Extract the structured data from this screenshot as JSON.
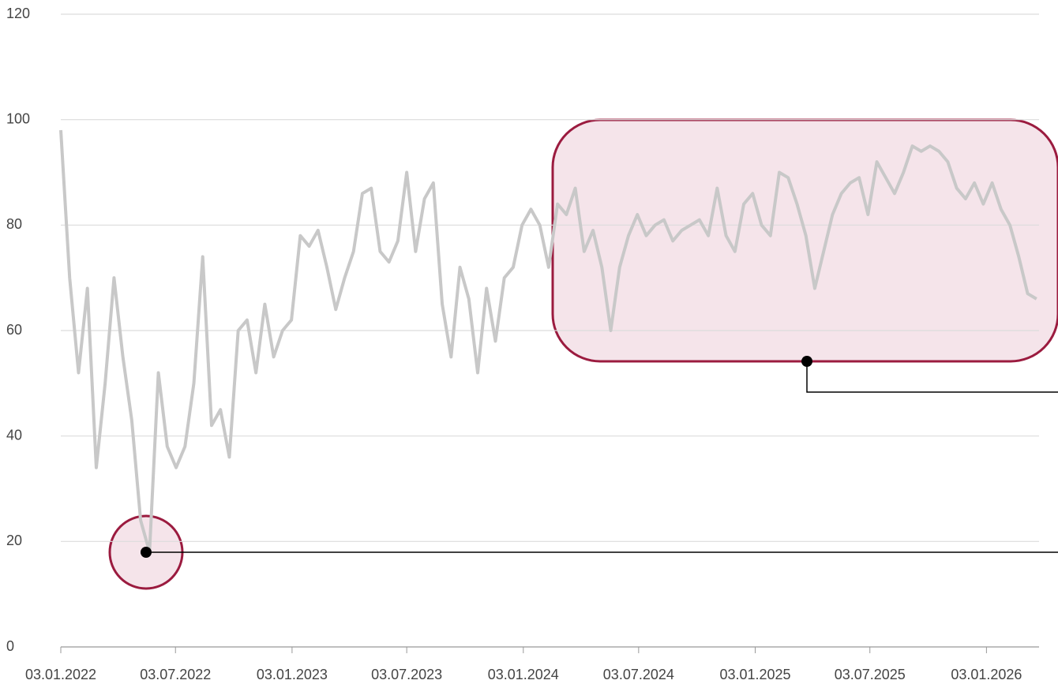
{
  "chart_data": {
    "type": "line",
    "x": [
      "2022-01-03",
      "2022-01-17",
      "2022-01-31",
      "2022-02-14",
      "2022-02-28",
      "2022-03-14",
      "2022-03-28",
      "2022-04-11",
      "2022-04-25",
      "2022-05-09",
      "2022-05-23",
      "2022-06-06",
      "2022-06-20",
      "2022-07-04",
      "2022-07-18",
      "2022-08-01",
      "2022-08-15",
      "2022-08-29",
      "2022-09-12",
      "2022-09-26",
      "2022-10-10",
      "2022-10-24",
      "2022-11-07",
      "2022-11-21",
      "2022-12-05",
      "2022-12-19",
      "2023-01-02",
      "2023-01-16",
      "2023-01-30",
      "2023-02-13",
      "2023-02-27",
      "2023-03-13",
      "2023-03-27",
      "2023-04-10",
      "2023-04-24",
      "2023-05-08",
      "2023-05-22",
      "2023-06-05",
      "2023-06-19",
      "2023-07-03",
      "2023-07-17",
      "2023-07-31",
      "2023-08-14",
      "2023-08-28",
      "2023-09-11",
      "2023-09-25",
      "2023-10-09",
      "2023-10-23",
      "2023-11-06",
      "2023-11-20",
      "2023-12-04",
      "2023-12-18",
      "2024-01-01",
      "2024-01-15",
      "2024-01-29",
      "2024-02-12",
      "2024-02-26",
      "2024-03-11",
      "2024-03-25",
      "2024-04-08",
      "2024-04-22",
      "2024-05-06",
      "2024-05-20",
      "2024-06-03",
      "2024-06-17",
      "2024-07-01",
      "2024-07-15",
      "2024-07-29",
      "2024-08-12",
      "2024-08-26",
      "2024-09-09",
      "2024-09-23",
      "2024-10-07",
      "2024-10-21",
      "2024-11-04",
      "2024-11-18",
      "2024-12-02",
      "2024-12-16",
      "2024-12-30",
      "2025-01-13",
      "2025-01-27",
      "2025-02-10",
      "2025-02-24",
      "2025-03-10",
      "2025-03-24",
      "2025-04-07",
      "2025-04-21",
      "2025-05-05",
      "2025-05-19",
      "2025-06-02",
      "2025-06-16",
      "2025-06-30",
      "2025-07-14",
      "2025-07-28",
      "2025-08-11",
      "2025-08-25",
      "2025-09-08",
      "2025-09-22",
      "2025-10-06",
      "2025-10-20",
      "2025-11-03",
      "2025-11-17",
      "2025-12-01",
      "2025-12-15",
      "2025-12-29",
      "2026-01-12",
      "2026-01-26",
      "2026-02-09",
      "2026-02-23",
      "2026-03-09",
      "2026-03-23"
    ],
    "series": [
      {
        "color": "#c8c8c8",
        "values": [
          98,
          70,
          52,
          68,
          34,
          50,
          70,
          55,
          43,
          24,
          18,
          52,
          38,
          34,
          38,
          50,
          74,
          42,
          45,
          36,
          60,
          62,
          52,
          65,
          55,
          60,
          62,
          78,
          76,
          79,
          72,
          64,
          70,
          75,
          86,
          87,
          75,
          73,
          77,
          90,
          75,
          85,
          88,
          65,
          55,
          72,
          66,
          52,
          68,
          58,
          70,
          72,
          80,
          83,
          80,
          72,
          84,
          82,
          87,
          75,
          79,
          72,
          60,
          72,
          78,
          82,
          78,
          80,
          81,
          77,
          79,
          80,
          81,
          78,
          87,
          78,
          75,
          84,
          86,
          80,
          78,
          90,
          89,
          84,
          78,
          68,
          75,
          82,
          86,
          88,
          89,
          82,
          92,
          89,
          86,
          90,
          95,
          94,
          95,
          94,
          92,
          87,
          85,
          88,
          84,
          88,
          83,
          80,
          74,
          67,
          66
        ]
      }
    ],
    "xlim": [
      "2022-01-03",
      "2026-03-27"
    ],
    "xticks": [
      {
        "value": "2022-01-03",
        "label": "03.01.2022"
      },
      {
        "value": "2022-07-03",
        "label": "03.07.2022"
      },
      {
        "value": "2023-01-03",
        "label": "03.01.2023"
      },
      {
        "value": "2023-07-03",
        "label": "03.07.2023"
      },
      {
        "value": "2024-01-03",
        "label": "03.01.2024"
      },
      {
        "value": "2024-07-03",
        "label": "03.07.2024"
      },
      {
        "value": "2025-01-03",
        "label": "03.01.2025"
      },
      {
        "value": "2025-07-03",
        "label": "03.07.2025"
      },
      {
        "value": "2026-01-03",
        "label": "03.01.2026"
      }
    ],
    "ylim": [
      0,
      120
    ],
    "yticks": [
      0,
      20,
      40,
      60,
      80,
      100,
      120
    ],
    "grid": true
  }
}
